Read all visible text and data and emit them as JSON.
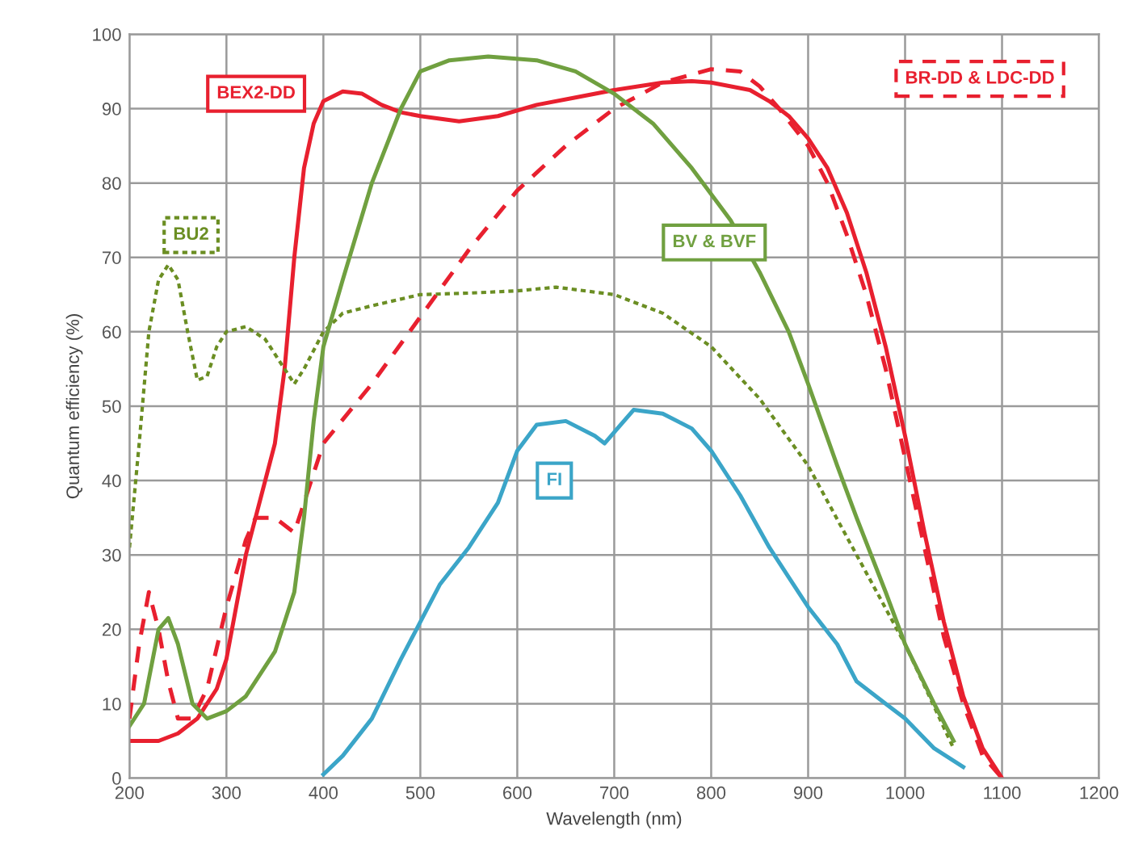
{
  "chart_data": {
    "type": "line",
    "xlabel": "Wavelength (nm)",
    "ylabel": "Quantum efficiency (%)",
    "xlim": [
      200,
      1200
    ],
    "ylim": [
      0,
      100
    ],
    "xticks": [
      200,
      300,
      400,
      500,
      600,
      700,
      800,
      900,
      1000,
      1100,
      1200
    ],
    "yticks": [
      0,
      10,
      20,
      30,
      40,
      50,
      60,
      70,
      80,
      90,
      100
    ],
    "grid": true,
    "legend": false,
    "series": [
      {
        "name": "BEX2-DD",
        "color": "#e8202f",
        "line_style": "solid",
        "x": [
          200,
          230,
          250,
          270,
          290,
          300,
          320,
          340,
          350,
          360,
          370,
          380,
          390,
          400,
          420,
          440,
          460,
          480,
          500,
          540,
          580,
          620,
          660,
          700,
          750,
          780,
          800,
          840,
          860,
          880,
          900,
          920,
          940,
          960,
          980,
          1000,
          1020,
          1040,
          1060,
          1080,
          1100
        ],
        "values": [
          5,
          5,
          6,
          8,
          12,
          16,
          30,
          40,
          45,
          55,
          70,
          82,
          88,
          91,
          92.3,
          92,
          90.5,
          89.5,
          89,
          88.3,
          89,
          90.5,
          91.5,
          92.5,
          93.5,
          93.7,
          93.5,
          92.5,
          91,
          89,
          86,
          82,
          76,
          68,
          58,
          46,
          33,
          21,
          11,
          4,
          0
        ]
      },
      {
        "name": "BR-DD & LDC-DD",
        "color": "#e8202f",
        "line_style": "dashed",
        "x": [
          200,
          210,
          220,
          230,
          240,
          250,
          265,
          280,
          300,
          320,
          330,
          350,
          370,
          380,
          400,
          450,
          500,
          550,
          600,
          650,
          700,
          750,
          800,
          830,
          850,
          870,
          900,
          920,
          940,
          960,
          980,
          1000,
          1020,
          1040,
          1060,
          1080,
          1100
        ],
        "values": [
          8,
          18,
          25,
          20,
          13,
          8,
          8,
          12,
          23,
          32,
          35,
          35,
          33,
          37,
          45,
          53,
          62,
          71,
          79,
          85,
          90,
          93.5,
          95.3,
          95,
          93,
          90,
          85,
          80,
          73,
          65,
          55,
          43,
          31,
          19,
          10,
          3,
          0
        ]
      },
      {
        "name": "BU2",
        "color": "#6b8e23",
        "line_style": "dotted",
        "x": [
          200,
          210,
          220,
          230,
          240,
          250,
          260,
          270,
          280,
          290,
          300,
          320,
          340,
          360,
          370,
          380,
          400,
          420,
          450,
          500,
          550,
          600,
          640,
          700,
          750,
          800,
          850,
          900,
          950,
          1000,
          1050
        ],
        "values": [
          31,
          45,
          60,
          67,
          69,
          67,
          60,
          53.5,
          54,
          58,
          60,
          60.7,
          59,
          55,
          53,
          55,
          60,
          62.5,
          63.5,
          65,
          65.2,
          65.5,
          66,
          65,
          62.5,
          58,
          51,
          42,
          30,
          18,
          4
        ]
      },
      {
        "name": "BV & BVF",
        "color": "#70a040",
        "line_style": "solid",
        "x": [
          200,
          215,
          230,
          240,
          250,
          265,
          280,
          300,
          320,
          350,
          370,
          380,
          390,
          400,
          420,
          450,
          480,
          500,
          530,
          570,
          620,
          660,
          700,
          740,
          780,
          820,
          850,
          880,
          900,
          930,
          950,
          980,
          1000,
          1030,
          1050
        ],
        "values": [
          7,
          10,
          20,
          21.5,
          18,
          10,
          8,
          9,
          11,
          17,
          25,
          35,
          48,
          58,
          67,
          80,
          90,
          95,
          96.5,
          97,
          96.5,
          95,
          92,
          88,
          82,
          75,
          68,
          60,
          53,
          42,
          35,
          25,
          18,
          10,
          5
        ]
      },
      {
        "name": "FI",
        "color": "#3ba5c8",
        "line_style": "solid",
        "x": [
          400,
          420,
          450,
          480,
          500,
          520,
          550,
          580,
          600,
          620,
          650,
          680,
          690,
          720,
          750,
          780,
          800,
          830,
          860,
          880,
          900,
          930,
          950,
          980,
          1000,
          1030,
          1060
        ],
        "values": [
          0.5,
          3,
          8,
          16,
          21,
          26,
          31,
          37,
          44,
          47.5,
          48,
          46,
          45,
          49.5,
          49,
          47,
          44,
          38,
          31,
          27,
          23,
          18,
          13,
          10,
          8,
          4,
          1.5
        ]
      }
    ]
  }
}
